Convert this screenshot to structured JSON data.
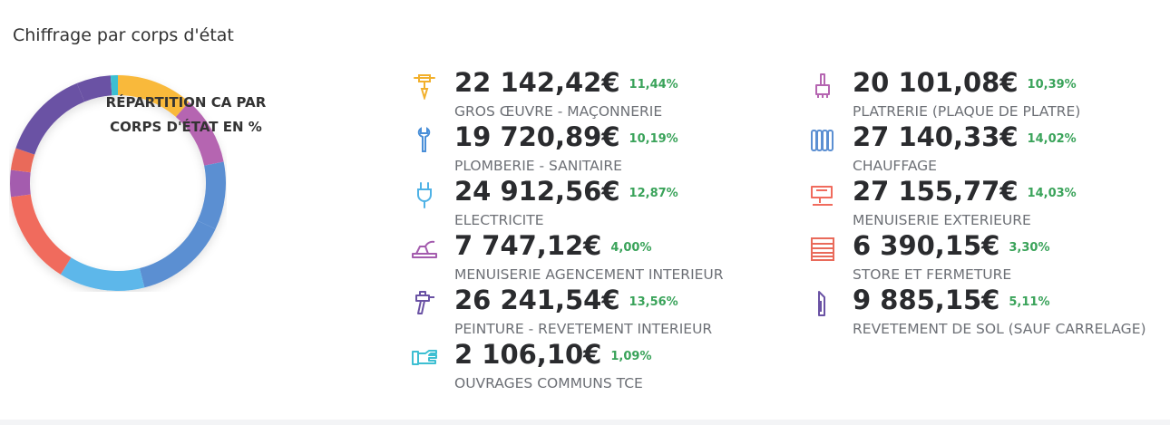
{
  "page": {
    "title": "Chiffrage par corps d'état"
  },
  "chart_data": {
    "type": "pie",
    "center_label_line1": "RÉPARTITION CA PAR",
    "center_label_line2": "CORPS D'ÉTAT EN %",
    "categories": [
      "GROS ŒUVRE - MAÇONNERIE",
      "PLATRERIE (PLAQUE DE PLATRE)",
      "PLOMBERIE - SANITAIRE",
      "CHAUFFAGE",
      "ELECTRICITE",
      "MENUISERIE EXTERIEURE",
      "MENUISERIE AGENCEMENT INTERIEUR",
      "STORE ET FERMETURE",
      "PEINTURE - REVETEMENT INTERIEUR",
      "REVETEMENT DE SOL (SAUF CARRELAGE)",
      "OUVRAGES COMMUNS TCE"
    ],
    "values": [
      11.44,
      10.39,
      10.19,
      14.02,
      12.87,
      14.03,
      4.0,
      3.3,
      13.56,
      5.11,
      1.09
    ],
    "colors": [
      "#f9b93b",
      "#b565b1",
      "#5b8fd2",
      "#5b8fd2",
      "#5db7ea",
      "#f06b5d",
      "#a45cae",
      "#e96a5a",
      "#6a52a4",
      "#6a52a4",
      "#3dbfd2"
    ]
  },
  "items": [
    {
      "amount": "22 142,42€",
      "pct": "11,44%",
      "label": "GROS ŒUVRE - MAÇONNERIE",
      "icon": "jackhammer-icon",
      "color": "#f2b02c"
    },
    {
      "amount": "19 720,89€",
      "pct": "10,19%",
      "label": "PLOMBERIE - SANITAIRE",
      "icon": "wrench-icon",
      "color": "#4a8fd8"
    },
    {
      "amount": "24 912,56€",
      "pct": "12,87%",
      "label": "ELECTRICITE",
      "icon": "plug-icon",
      "color": "#4fb2e6"
    },
    {
      "amount": "7 747,12€",
      "pct": "4,00%",
      "label": "MENUISERIE AGENCEMENT INTERIEUR",
      "icon": "plane-tool-icon",
      "color": "#a45cae"
    },
    {
      "amount": "26 241,54€",
      "pct": "13,56%",
      "label": "PEINTURE - REVETEMENT INTERIEUR",
      "icon": "spray-gun-icon",
      "color": "#6a52a4"
    },
    {
      "amount": "2 106,10€",
      "pct": "1,09%",
      "label": "OUVRAGES COMMUNS TCE",
      "icon": "hand-icon",
      "color": "#3dbfd2"
    },
    {
      "amount": "20 101,08€",
      "pct": "10,39%",
      "label": "PLATRERIE (PLAQUE DE PLATRE)",
      "icon": "brush-icon",
      "color": "#b565b1"
    },
    {
      "amount": "27 140,33€",
      "pct": "14,02%",
      "label": "CHAUFFAGE",
      "icon": "radiator-icon",
      "color": "#5b8fd2"
    },
    {
      "amount": "27 155,77€",
      "pct": "14,03%",
      "label": "MENUISERIE EXTERIEURE",
      "icon": "jigsaw-icon",
      "color": "#f06b5d"
    },
    {
      "amount": "6 390,15€",
      "pct": "3,30%",
      "label": "STORE ET FERMETURE",
      "icon": "shutter-icon",
      "color": "#e96a5a"
    },
    {
      "amount": "9 885,15€",
      "pct": "5,11%",
      "label": "REVETEMENT DE SOL (SAUF CARRELAGE)",
      "icon": "cutter-icon",
      "color": "#6a52a4"
    }
  ]
}
